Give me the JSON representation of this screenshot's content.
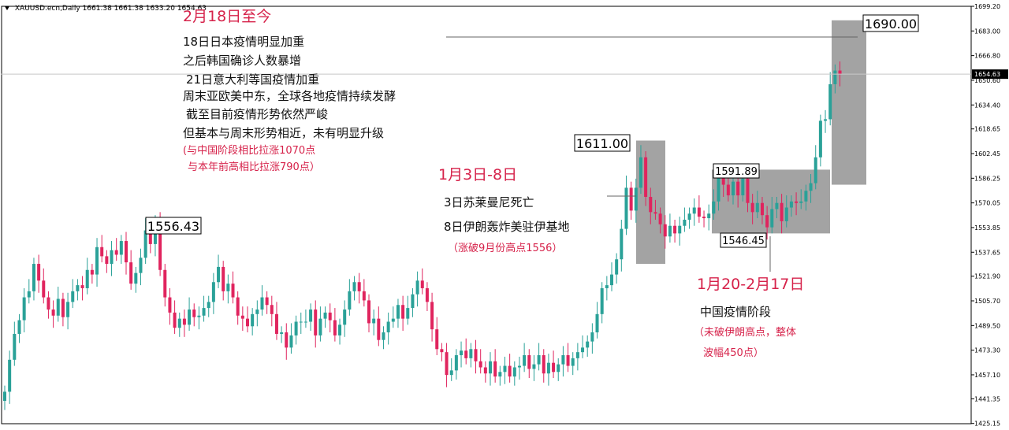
{
  "header": {
    "symbol": "XAUUSD.ecn,Daily",
    "ohlc": "1661.38 1661.38 1633.20 1654.63"
  },
  "colors": {
    "up": "#2aa198",
    "down": "#e0245e",
    "box": "#a3a3a3",
    "annotation_red": "#d6224a",
    "axis": "#000000",
    "current_price_bg": "#000000"
  },
  "chart_data": {
    "type": "candlestick",
    "symbol": "XAUUSD.ecn",
    "timeframe": "Daily",
    "ylim": [
      1425.0,
      1699.2
    ],
    "y_ticks": [
      "1699.20",
      "1683.00",
      "1666.80",
      "1650.60",
      "1634.40",
      "1618.65",
      "1602.45",
      "1586.25",
      "1570.05",
      "1553.85",
      "1537.65",
      "1521.90",
      "1505.70",
      "1489.50",
      "1473.30",
      "1457.10",
      "1441.35",
      "1425.15"
    ],
    "current_price": "1654.63",
    "candles_open": [
      1440,
      1446,
      1467,
      1484,
      1493,
      1508,
      1512,
      1530,
      1519,
      1508,
      1500,
      1496,
      1507,
      1495,
      1505,
      1512,
      1516,
      1514,
      1526,
      1523,
      1541,
      1535,
      1530,
      1539,
      1536,
      1545,
      1531,
      1517,
      1524,
      1534,
      1552,
      1543,
      1556,
      1526,
      1508,
      1498,
      1488,
      1494,
      1490,
      1500,
      1495,
      1496,
      1501,
      1505,
      1518,
      1528,
      1512,
      1517,
      1508,
      1496,
      1494,
      1489,
      1497,
      1500,
      1508,
      1503,
      1497,
      1484,
      1485,
      1475,
      1483,
      1492,
      1492,
      1492,
      1500,
      1483,
      1494,
      1498,
      1493,
      1483,
      1490,
      1500,
      1512,
      1518,
      1512,
      1506,
      1491,
      1494,
      1480,
      1485,
      1492,
      1494,
      1503,
      1494,
      1501,
      1510,
      1519,
      1514,
      1505,
      1487,
      1474,
      1472,
      1457,
      1460,
      1470,
      1473,
      1468,
      1474,
      1466,
      1462,
      1458,
      1466,
      1456,
      1459,
      1463,
      1456,
      1462,
      1463,
      1470,
      1461,
      1464,
      1470,
      1458,
      1465,
      1459,
      1464,
      1470,
      1463,
      1468,
      1472,
      1475,
      1479,
      1485,
      1497,
      1514,
      1516,
      1523,
      1533,
      1553,
      1580,
      1565,
      1580,
      1600,
      1574,
      1564,
      1563,
      1556,
      1548,
      1555,
      1550,
      1555,
      1559,
      1563,
      1567,
      1561,
      1560,
      1563,
      1571,
      1587,
      1582,
      1575,
      1584,
      1575,
      1586,
      1570,
      1564,
      1570,
      1562,
      1554,
      1566,
      1570,
      1558,
      1567,
      1571,
      1570,
      1571,
      1578,
      1583,
      1600,
      1624,
      1625,
      1648,
      1657
    ],
    "candles_close": [
      1446,
      1467,
      1484,
      1493,
      1508,
      1512,
      1530,
      1519,
      1508,
      1500,
      1496,
      1507,
      1495,
      1505,
      1512,
      1516,
      1514,
      1526,
      1523,
      1541,
      1535,
      1530,
      1539,
      1536,
      1545,
      1531,
      1517,
      1524,
      1534,
      1552,
      1543,
      1556,
      1526,
      1508,
      1498,
      1488,
      1494,
      1490,
      1500,
      1495,
      1496,
      1501,
      1505,
      1518,
      1528,
      1512,
      1517,
      1508,
      1496,
      1494,
      1489,
      1497,
      1500,
      1508,
      1503,
      1497,
      1484,
      1485,
      1475,
      1483,
      1492,
      1492,
      1492,
      1500,
      1483,
      1494,
      1498,
      1493,
      1483,
      1490,
      1500,
      1512,
      1518,
      1512,
      1506,
      1491,
      1494,
      1480,
      1485,
      1492,
      1494,
      1503,
      1494,
      1501,
      1510,
      1519,
      1514,
      1505,
      1487,
      1474,
      1472,
      1457,
      1460,
      1470,
      1473,
      1468,
      1474,
      1466,
      1462,
      1458,
      1466,
      1456,
      1459,
      1463,
      1456,
      1462,
      1463,
      1470,
      1461,
      1464,
      1470,
      1458,
      1465,
      1459,
      1464,
      1470,
      1463,
      1468,
      1472,
      1475,
      1479,
      1485,
      1497,
      1514,
      1516,
      1523,
      1533,
      1553,
      1580,
      1565,
      1580,
      1600,
      1574,
      1564,
      1563,
      1556,
      1548,
      1555,
      1550,
      1555,
      1559,
      1563,
      1567,
      1561,
      1560,
      1563,
      1571,
      1587,
      1582,
      1575,
      1584,
      1575,
      1586,
      1570,
      1564,
      1570,
      1562,
      1554,
      1566,
      1570,
      1558,
      1567,
      1571,
      1570,
      1571,
      1578,
      1583,
      1600,
      1624,
      1625,
      1648,
      1657,
      1654.63
    ]
  },
  "boxes": [
    {
      "label": "1611.00",
      "top": 1611.0,
      "bottom": 1530.0
    },
    {
      "label": "1591.89",
      "top": 1591.89,
      "bottom": 1550.0
    },
    {
      "label": "1690.00",
      "top": 1690.0,
      "bottom": 1582.0
    },
    {
      "label": "1556.43",
      "top": 1556.43,
      "bottom": 1556.43
    },
    {
      "label": "1546.45",
      "top": 1546.45,
      "bottom": 1546.45
    }
  ],
  "annotations": {
    "feb18": {
      "title": "2月18日至今",
      "lines": [
        "18日日本疫情明显加重",
        "之后韩国确诊人数暴增",
        "21日意大利等国疫情加重",
        "周末亚欧美中东，全球各地疫情持续发酵",
        "截至目前疫情形势依然严峻",
        "但基本与周末形势相近，未有明显升级"
      ],
      "notes": [
        "(与中国阶段相比拉涨1070点",
        "与本年前高相比拉涨790点）"
      ]
    },
    "jan3": {
      "title": "1月3日-8日",
      "lines": [
        "3日苏莱曼尼死亡",
        "8日伊朗轰炸美驻伊基地"
      ],
      "notes": [
        "（涨破9月份高点1556）"
      ]
    },
    "jan20": {
      "title": "1月20-2月17日",
      "lines": [
        "中国疫情阶段"
      ],
      "notes": [
        "（未破伊朗高点，整体",
        "波幅450点）"
      ]
    }
  }
}
